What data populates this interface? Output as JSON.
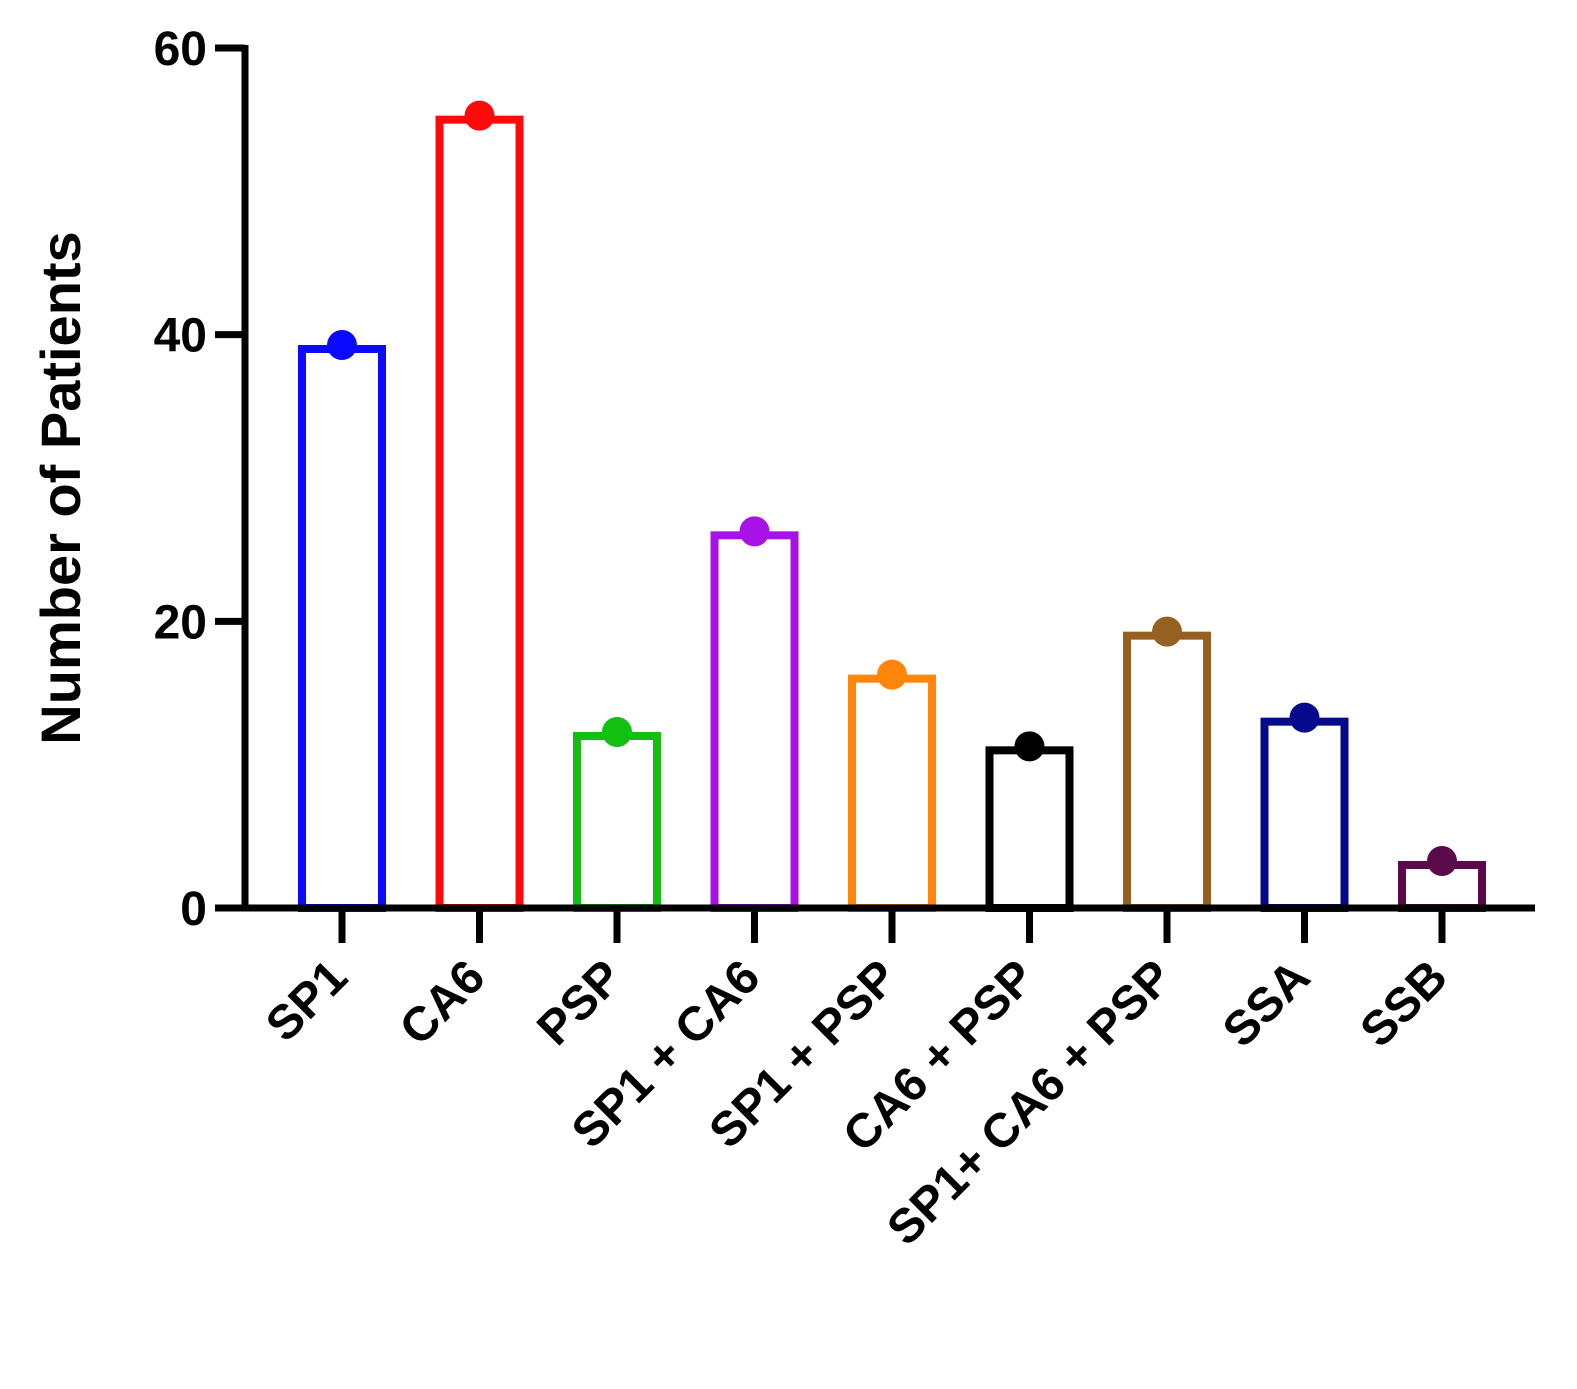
{
  "chart_data": {
    "type": "bar",
    "title": "",
    "xlabel": "",
    "ylabel": "Number of Patients",
    "ylim": [
      0,
      60
    ],
    "yticks": [
      0,
      20,
      40,
      60
    ],
    "categories": [
      "SP1",
      "CA6",
      "PSP",
      "SP1 + CA6",
      "SP1 + PSP",
      "CA6 + PSP",
      "SP1+ CA6 + PSP",
      "SSA",
      "SSB"
    ],
    "values": [
      39,
      55,
      12,
      26,
      16,
      11,
      19,
      13,
      3
    ],
    "colors": [
      "#0a0aff",
      "#ff0a0a",
      "#12c012",
      "#a812e6",
      "#ff860a",
      "#000000",
      "#956020",
      "#050a8c",
      "#5a0a4a"
    ],
    "bar_style": "outlined bars with a dot marker at each value",
    "grid": false,
    "legend": "none"
  }
}
